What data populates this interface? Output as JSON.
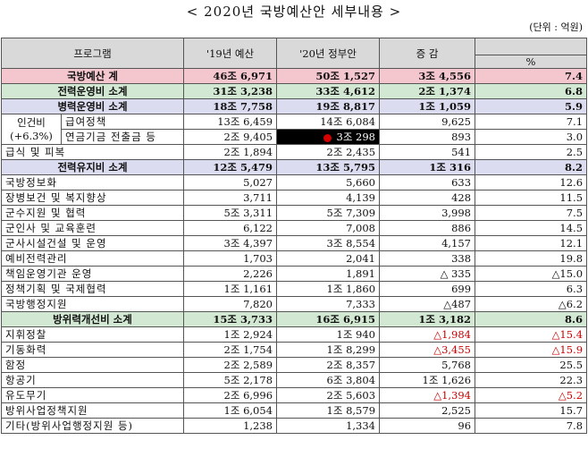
{
  "title": "< 2020년 국방예산안 세부내용 >",
  "unit": "(단위 : 억원)",
  "headers": {
    "program": "프로그램",
    "y2019": "'19년 예산",
    "y2020": "'20년 정부안",
    "change": "증 감",
    "percent": "%"
  },
  "rows": {
    "total": {
      "label": "국방예산 계",
      "b19": "46조 6,971",
      "b20": "50조 1,527",
      "diff": "3조 4,556",
      "pct": "7.4"
    },
    "force_ops": {
      "label": "전력운영비 소계",
      "b19": "31조 3,238",
      "b20": "33조 4,612",
      "diff": "2조 1,374",
      "pct": "6.8"
    },
    "personnel_ops": {
      "label": "병력운영비 소계",
      "b19": "18조 7,758",
      "b20": "19조 8,817",
      "diff": "1조 1,059",
      "pct": "5.9"
    },
    "labor_group": {
      "label1": "인건비",
      "label2": "(+6.3%)"
    },
    "salary": {
      "label": "급여정책",
      "b19": "13조 6,459",
      "b20": "14조 6,084",
      "diff": "9,625",
      "pct": "7.1"
    },
    "pension": {
      "label": "연금기금 전출금 등",
      "b19": "2조 9,405",
      "b20": "3조 298",
      "diff": "893",
      "pct": "3.0"
    },
    "meals": {
      "label": "급식 및 피복",
      "b19": "2조 1,894",
      "b20": "2조 2,435",
      "diff": "541",
      "pct": "2.5"
    },
    "maintenance": {
      "label": "전력유지비 소계",
      "b19": "12조 5,479",
      "b20": "13조 5,795",
      "diff": "1조 316",
      "pct": "8.2"
    },
    "info": {
      "label": "국방정보화",
      "b19": "5,027",
      "b20": "5,660",
      "diff": "633",
      "pct": "12.6"
    },
    "health": {
      "label": "장병보건 및 복지향상",
      "b19": "3,711",
      "b20": "4,139",
      "diff": "428",
      "pct": "11.5"
    },
    "logistics": {
      "label": "군수지원 및 협력",
      "b19": "5조 3,311",
      "b20": "5조 7,309",
      "diff": "3,998",
      "pct": "7.5"
    },
    "education": {
      "label": "군인사 및 교육훈련",
      "b19": "6,122",
      "b20": "7,008",
      "diff": "886",
      "pct": "14.5"
    },
    "facilities": {
      "label": "군사시설건설 및 운영",
      "b19": "3조 4,397",
      "b20": "3조 8,554",
      "diff": "4,157",
      "pct": "12.1"
    },
    "reserve": {
      "label": "예비전력관리",
      "b19": "1,703",
      "b20": "2,041",
      "diff": "338",
      "pct": "19.8"
    },
    "agency": {
      "label": "책임운영기관 운영",
      "b19": "2,226",
      "b20": "1,891",
      "diff": "△ 335",
      "pct": "△15.0"
    },
    "policy": {
      "label": "정책기획 및 국제협력",
      "b19": "1조 1,161",
      "b20": "1조 1,860",
      "diff": "699",
      "pct": "6.3"
    },
    "admin": {
      "label": "국방행정지원",
      "b19": "7,820",
      "b20": "7,333",
      "diff": "△487",
      "pct": "△6.2"
    },
    "improvement": {
      "label": "방위력개선비 소계",
      "b19": "15조 3,733",
      "b20": "16조 6,915",
      "diff": "1조 3,182",
      "pct": "8.6"
    },
    "command": {
      "label": "지휘정찰",
      "b19": "1조 2,924",
      "b20": "1조 940",
      "diff": "△1,984",
      "pct": "△15.4"
    },
    "firepower": {
      "label": "기동화력",
      "b19": "2조 1,754",
      "b20": "1조 8,299",
      "diff": "△3,455",
      "pct": "△15.9"
    },
    "naval": {
      "label": "함정",
      "b19": "2조 2,589",
      "b20": "2조 8,357",
      "diff": "5,768",
      "pct": "25.5"
    },
    "aircraft": {
      "label": "항공기",
      "b19": "5조 2,178",
      "b20": "6조 3,804",
      "diff": "1조 1,626",
      "pct": "22.3"
    },
    "missiles": {
      "label": "유도무기",
      "b19": "2조 6,996",
      "b20": "2조 5,603",
      "diff": "△1,394",
      "pct": "△5.2"
    },
    "defense_policy": {
      "label": "방위사업정책지원",
      "b19": "1조 6,054",
      "b20": "1조 8,579",
      "diff": "2,525",
      "pct": "15.7"
    },
    "other": {
      "label": "기타(방위사업행정지원 등)",
      "b19": "1,238",
      "b20": "1,334",
      "diff": "96",
      "pct": "7.8"
    }
  }
}
